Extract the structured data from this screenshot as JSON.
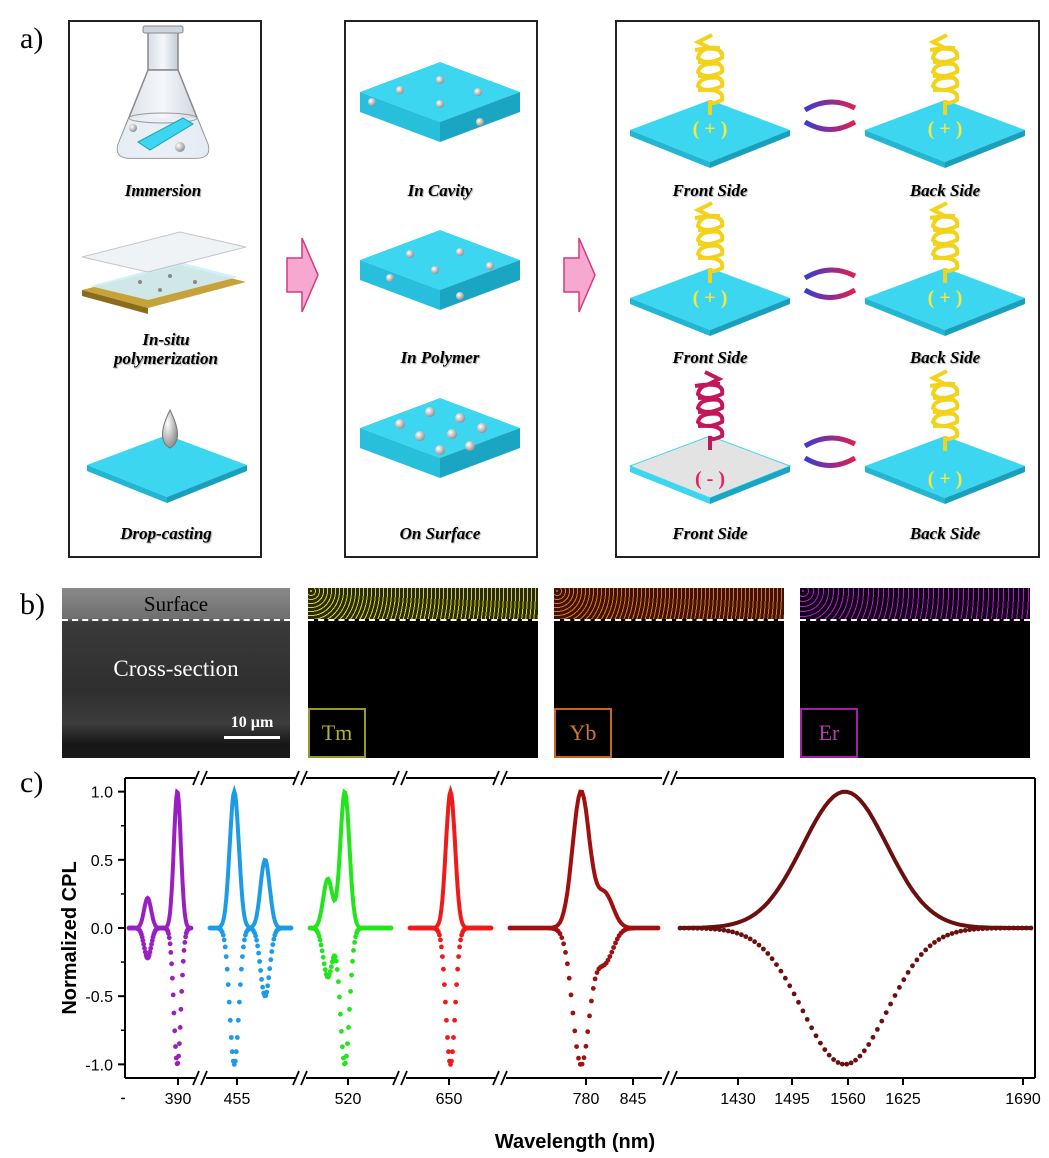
{
  "panels": {
    "a": "a)",
    "b": "b)",
    "c": "c)"
  },
  "panel_a": {
    "methods": [
      "Immersion",
      "In-situ\npolymerization",
      "Drop-casting"
    ],
    "locations": [
      "In Cavity",
      "In Polymer",
      "On Surface"
    ],
    "sides": [
      {
        "front": "Front Side",
        "back": "Back Side",
        "front_sign": "( + )",
        "back_sign": "( + )"
      },
      {
        "front": "Front Side",
        "back": "Back Side",
        "front_sign": "( + )",
        "back_sign": "( + )"
      },
      {
        "front": "Front Side",
        "back": "Back Side",
        "front_sign": "( - )",
        "back_sign": "( + )"
      }
    ],
    "colors": {
      "film": "#3dd6f0",
      "arrow": "#f7a8d0",
      "helix_pos": "#f2d21b",
      "helix_neg": "#c2185b",
      "sign_pos": "#f5e93a",
      "sign_neg": "#e91e63"
    }
  },
  "panel_b": {
    "sem": {
      "surface": "Surface",
      "cross": "Cross-section",
      "scale": "10 µm"
    },
    "maps": [
      {
        "label": "Tm",
        "color": "#9a9a1a"
      },
      {
        "label": "Yb",
        "color": "#c5681a"
      },
      {
        "label": "Er",
        "color": "#a020a0"
      }
    ]
  },
  "chart_data": {
    "type": "line",
    "ylabel": "Normalized CPL",
    "xlabel": "Wavelength (nm)",
    "ylim": [
      -1.1,
      1.1
    ],
    "yticks": [
      "1.0",
      "0.5",
      "0.0",
      "-0.5",
      "-1.0"
    ],
    "xticks": [
      "390",
      "455",
      "520",
      "650",
      "780",
      "845",
      "1430",
      "1495",
      "1560",
      "1625",
      "1690"
    ],
    "series": [
      {
        "color": "#9b1fbf",
        "segment": 0,
        "peaks": [
          [
            0.78,
            1.0
          ],
          [
            0.3,
            0.22
          ]
        ]
      },
      {
        "color": "#1c9be6",
        "segment": 1,
        "peaks": [
          [
            0.3,
            1.0
          ],
          [
            0.68,
            0.5
          ]
        ]
      },
      {
        "color": "#22e51c",
        "segment": 2,
        "peaks": [
          [
            0.22,
            0.36
          ],
          [
            0.43,
            1.0
          ]
        ]
      },
      {
        "color": "#ef1a1a",
        "segment": 3,
        "peaks": [
          [
            0.5,
            1.0
          ]
        ]
      },
      {
        "color": "#a01010",
        "segment": 4,
        "peaks": [
          [
            0.48,
            1.0
          ],
          [
            0.64,
            0.25
          ]
        ]
      },
      {
        "color": "#6b0f0f",
        "segment": 5,
        "peaks": [
          [
            0.47,
            1.0
          ]
        ]
      }
    ]
  }
}
